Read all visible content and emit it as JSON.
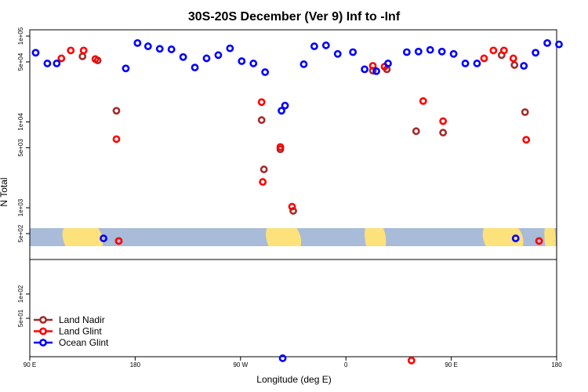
{
  "chart_data": {
    "type": "scatter",
    "title": "30S-20S December (Ver 9)   Inf to -Inf",
    "xlabel": "Longitude (deg E)",
    "ylabel": "N Total",
    "x_ticks": [
      {
        "value": 0,
        "label": "90 E"
      },
      {
        "value": 90,
        "label": "180"
      },
      {
        "value": 180,
        "label": "90 W"
      },
      {
        "value": 270,
        "label": "0"
      },
      {
        "value": 360,
        "label": "90 E"
      },
      {
        "value": 450,
        "label": "180"
      }
    ],
    "xlim": [
      0,
      450
    ],
    "upper_panel": {
      "yscale": "log",
      "ylim": [
        250,
        100000
      ],
      "y_ticks": [
        {
          "value": 100000,
          "label": "1e+05"
        },
        {
          "value": 50000,
          "label": "5e+04"
        },
        {
          "value": 10000,
          "label": "1e+04"
        },
        {
          "value": 5000,
          "label": "5e+03"
        },
        {
          "value": 1000,
          "label": "1e+03"
        },
        {
          "value": 500,
          "label": "5e+02"
        }
      ]
    },
    "lower_panel": {
      "yscale": "log",
      "ylim": [
        12,
        300
      ],
      "y_ticks": [
        {
          "value": 100,
          "label": "1e+02"
        },
        {
          "value": 50,
          "label": "5e+01"
        }
      ]
    },
    "series": [
      {
        "name": "Land Nadir",
        "color": "#a52a2a",
        "points": [
          [
            45,
            58000
          ],
          [
            58,
            52000
          ],
          [
            74,
            13500
          ],
          [
            198,
            10500
          ],
          [
            214,
            4800
          ],
          [
            200,
            2800
          ],
          [
            225,
            920
          ],
          [
            293,
            39500
          ],
          [
            305,
            41000
          ],
          [
            330,
            7800
          ],
          [
            353,
            7500
          ],
          [
            423,
            13000
          ],
          [
            403,
            60000
          ],
          [
            414,
            46000
          ]
        ]
      },
      {
        "name": "Land Glint",
        "color": "#ff0000",
        "points": [
          [
            27,
            55000
          ],
          [
            35,
            68000
          ],
          [
            46,
            68000
          ],
          [
            56,
            54000
          ],
          [
            74,
            6300
          ],
          [
            198,
            17000
          ],
          [
            214,
            5100
          ],
          [
            199,
            2000
          ],
          [
            224,
            1030
          ],
          [
            293,
            45000
          ],
          [
            303,
            44000
          ],
          [
            336,
            17500
          ],
          [
            353,
            10200
          ],
          [
            388,
            55000
          ],
          [
            396,
            68000
          ],
          [
            405,
            68000
          ],
          [
            413,
            55000
          ],
          [
            424,
            6200
          ],
          [
            76,
            410
          ],
          [
            435,
            410
          ]
        ]
      },
      {
        "name": "Ocean Glint",
        "color": "#0000ff",
        "points": [
          [
            5,
            64000
          ],
          [
            15,
            48000
          ],
          [
            23,
            48000
          ],
          [
            82,
            42000
          ],
          [
            63,
            440
          ],
          [
            92,
            83000
          ],
          [
            101,
            76000
          ],
          [
            111,
            71000
          ],
          [
            121,
            70000
          ],
          [
            131,
            57000
          ],
          [
            141,
            43000
          ],
          [
            151,
            55000
          ],
          [
            161,
            60000
          ],
          [
            171,
            72000
          ],
          [
            181,
            51000
          ],
          [
            191,
            48000
          ],
          [
            201,
            38000
          ],
          [
            215,
            13500
          ],
          [
            218,
            15500
          ],
          [
            234,
            47000
          ],
          [
            243,
            76000
          ],
          [
            253,
            78000
          ],
          [
            263,
            62000
          ],
          [
            276,
            65000
          ],
          [
            286,
            41000
          ],
          [
            296,
            39000
          ],
          [
            306,
            48000
          ],
          [
            322,
            65000
          ],
          [
            332,
            66000
          ],
          [
            342,
            69000
          ],
          [
            352,
            66000
          ],
          [
            362,
            62000
          ],
          [
            372,
            48000
          ],
          [
            382,
            48000
          ],
          [
            432,
            64000
          ],
          [
            422,
            45000
          ],
          [
            415,
            440
          ],
          [
            442,
            83000
          ],
          [
            452,
            80000
          ]
        ]
      }
    ],
    "lower_points": [
      {
        "series": "Ocean Glint",
        "x": 216,
        "y": 16
      },
      {
        "series": "Land Glint",
        "x": 326,
        "y": 15
      }
    ],
    "legend": {
      "placement": "bottom-left",
      "entries": [
        {
          "label": "Land Nadir",
          "color": "#a52a2a"
        },
        {
          "label": "Land Glint",
          "color": "#ff0000"
        },
        {
          "label": "Ocean Glint",
          "color": "#0000ff"
        }
      ]
    },
    "map_strip": {
      "ocean_color": "#a8bbd8",
      "land_color": "#fde17a",
      "land_ranges": [
        [
          26,
          64
        ],
        [
          200,
          233
        ],
        [
          285,
          305
        ],
        [
          385,
          423
        ],
        [
          439,
          450
        ]
      ]
    }
  }
}
